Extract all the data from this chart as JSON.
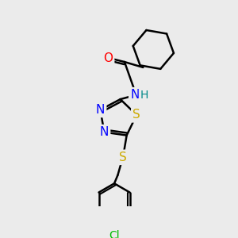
{
  "background_color": "#ebebeb",
  "bond_color": "#000000",
  "bond_width": 1.8,
  "atom_colors": {
    "N": "#0000ff",
    "O": "#ff0000",
    "S": "#ccaa00",
    "Cl": "#00bb00",
    "H": "#008888"
  },
  "figsize": [
    3.0,
    3.0
  ],
  "dpi": 100
}
